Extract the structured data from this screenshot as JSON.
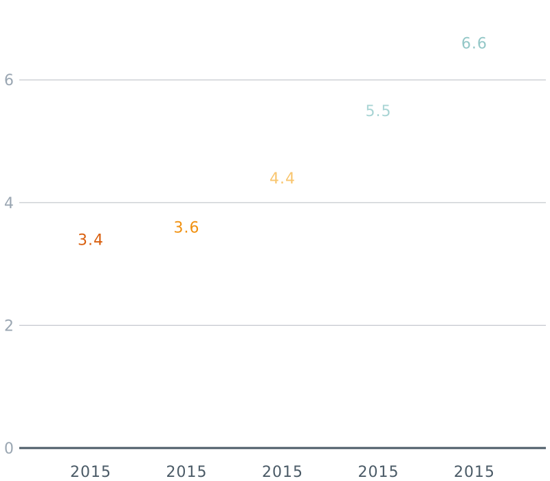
{
  "chart_data": {
    "type": "scatter",
    "title": "",
    "xlabel": "",
    "ylabel": "",
    "categories": [
      "2015",
      "2015",
      "2015",
      "2015",
      "2015"
    ],
    "values": [
      3.4,
      3.6,
      4.4,
      5.5,
      6.6
    ],
    "labels": [
      "3.4",
      "3.6",
      "4.4",
      "5.5",
      "6.6"
    ],
    "colors": [
      "#d95f0e",
      "#f0900f",
      "#f8c56e",
      "#a8d4d4",
      "#93c7c7"
    ],
    "ylim": [
      0,
      7.1
    ],
    "y_ticks": [
      0,
      2,
      4,
      6
    ],
    "y_tick_labels": [
      "0",
      "2",
      "4",
      "6"
    ],
    "grid": true,
    "legend": "none",
    "style": {
      "gridline_color": "#b8bcc2",
      "baseline_color": "#4a5a66",
      "y_tick_color": "#9aa6b2",
      "x_tick_color": "#4a5a66"
    }
  }
}
